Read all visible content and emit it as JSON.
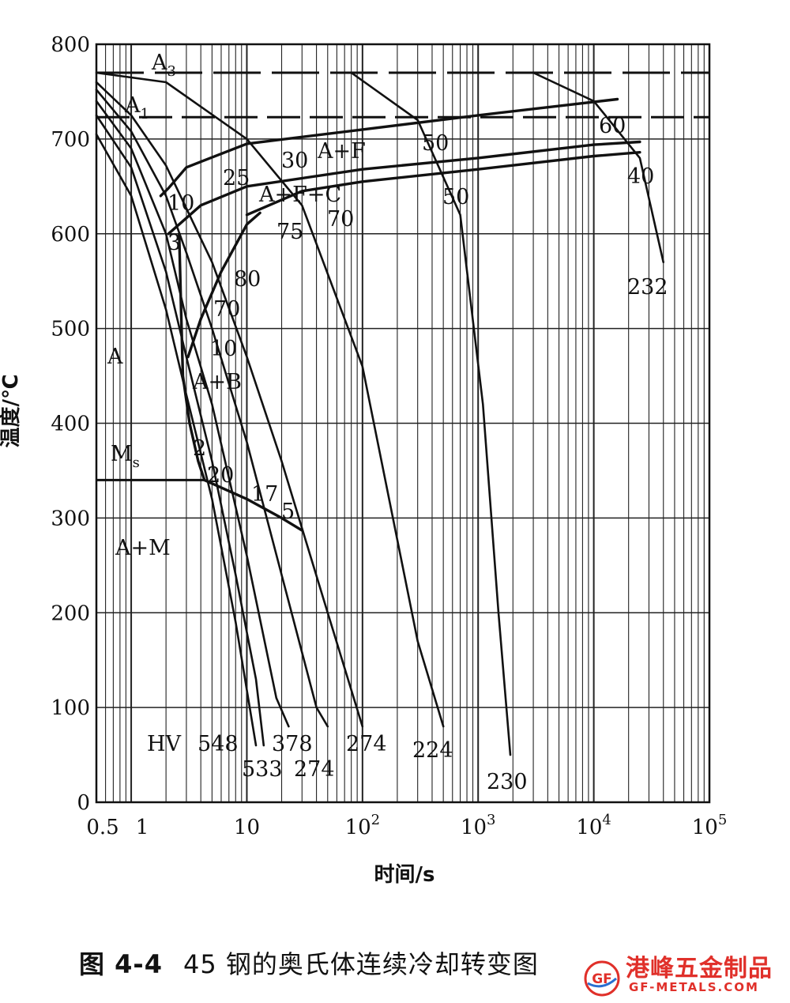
{
  "chart_data": {
    "type": "line",
    "xscale": "log",
    "xlim": [
      0.5,
      100000
    ],
    "ylim": [
      0,
      800
    ],
    "xlabel": "时间/s",
    "ylabel": "温度/℃",
    "x_ticks": [
      {
        "value": 0.5,
        "label": "0.5"
      },
      {
        "value": 1,
        "label": "1"
      },
      {
        "value": 10,
        "label": "10"
      },
      {
        "value": 100,
        "label": "10",
        "sup": "2"
      },
      {
        "value": 1000,
        "label": "10",
        "sup": "3"
      },
      {
        "value": 10000,
        "label": "10",
        "sup": "4"
      },
      {
        "value": 100000,
        "label": "10",
        "sup": "5"
      }
    ],
    "y_ticks": [
      0,
      100,
      200,
      300,
      400,
      500,
      600,
      700,
      800
    ],
    "reference_lines": [
      {
        "name": "A₃",
        "label": "A",
        "sub": "3",
        "y": 770
      },
      {
        "name": "A₁",
        "label": "A",
        "sub": "1",
        "y": 723
      },
      {
        "name": "Ms",
        "label": "M",
        "sub": "s",
        "y": 340
      }
    ],
    "regions": [
      "A",
      "A+F",
      "A+F+C",
      "A+B",
      "A+M"
    ],
    "cooling_curves": [
      {
        "hardness": "548",
        "points": [
          [
            0.5,
            705
          ],
          [
            1,
            640
          ],
          [
            2,
            520
          ],
          [
            3,
            430
          ],
          [
            5,
            320
          ],
          [
            8,
            190
          ],
          [
            12,
            60
          ]
        ]
      },
      {
        "hardness": "533",
        "points": [
          [
            0.5,
            725
          ],
          [
            1,
            670
          ],
          [
            2,
            560
          ],
          [
            3,
            470
          ],
          [
            5,
            360
          ],
          [
            8,
            240
          ],
          [
            12,
            130
          ],
          [
            14,
            60
          ]
        ]
      },
      {
        "hardness": "378",
        "points": [
          [
            0.5,
            740
          ],
          [
            1,
            690
          ],
          [
            2,
            600
          ],
          [
            3,
            510
          ],
          [
            5,
            420
          ],
          [
            10,
            260
          ],
          [
            18,
            110
          ],
          [
            23,
            80
          ]
        ]
      },
      {
        "hardness": "274",
        "points": [
          [
            0.5,
            752
          ],
          [
            1,
            708
          ],
          [
            2,
            640
          ],
          [
            3,
            580
          ],
          [
            5,
            500
          ],
          [
            10,
            380
          ],
          [
            20,
            240
          ],
          [
            40,
            100
          ],
          [
            50,
            80
          ]
        ]
      },
      {
        "hardness": "274",
        "points": [
          [
            0.5,
            760
          ],
          [
            1,
            725
          ],
          [
            2,
            672
          ],
          [
            5,
            570
          ],
          [
            10,
            470
          ],
          [
            20,
            360
          ],
          [
            50,
            200
          ],
          [
            100,
            80
          ]
        ]
      },
      {
        "hardness": "224",
        "points": [
          [
            0.5,
            770
          ],
          [
            2,
            760
          ],
          [
            10,
            700
          ],
          [
            30,
            630
          ],
          [
            100,
            460
          ],
          [
            300,
            170
          ],
          [
            500,
            80
          ]
        ]
      },
      {
        "hardness": "230",
        "points": [
          [
            80,
            770
          ],
          [
            300,
            720
          ],
          [
            700,
            620
          ],
          [
            1100,
            420
          ],
          [
            1500,
            200
          ],
          [
            1900,
            50
          ]
        ]
      },
      {
        "hardness": "232",
        "points": [
          [
            3000,
            770
          ],
          [
            10000,
            740
          ],
          [
            25000,
            680
          ],
          [
            40000,
            570
          ]
        ]
      }
    ],
    "transformation_lines": [
      {
        "name": "ferrite start",
        "points": [
          [
            1.8,
            640
          ],
          [
            2.1,
            648
          ],
          [
            3,
            670
          ],
          [
            10,
            695
          ],
          [
            100,
            710
          ],
          [
            1000,
            725
          ],
          [
            16000,
            742
          ]
        ]
      },
      {
        "name": "pearlite start",
        "points": [
          [
            2.1,
            600
          ],
          [
            4,
            630
          ],
          [
            10,
            650
          ],
          [
            100,
            668
          ],
          [
            1000,
            680
          ],
          [
            10000,
            694
          ],
          [
            25000,
            697
          ]
        ]
      },
      {
        "name": "pearlite end",
        "points": [
          [
            10,
            620
          ],
          [
            30,
            645
          ],
          [
            100,
            655
          ],
          [
            1000,
            668
          ],
          [
            10000,
            682
          ],
          [
            25000,
            686
          ]
        ]
      },
      {
        "name": "bainite start",
        "points": [
          [
            2.6,
            600
          ],
          [
            2.7,
            520
          ],
          [
            2.8,
            450
          ],
          [
            3.2,
            400
          ],
          [
            3.8,
            360
          ],
          [
            4.3,
            340
          ]
        ]
      },
      {
        "name": "bainite end",
        "points": [
          [
            3.1,
            470
          ],
          [
            4,
            510
          ],
          [
            6,
            560
          ],
          [
            10,
            610
          ],
          [
            13,
            622
          ]
        ]
      },
      {
        "name": "martensite",
        "points": [
          [
            4.3,
            340
          ],
          [
            10,
            320
          ],
          [
            20,
            300
          ],
          [
            30,
            287
          ]
        ]
      }
    ],
    "annotations": [
      "30",
      "25",
      "10",
      "3",
      "75",
      "70",
      "80",
      "70",
      "10",
      "2",
      "20",
      "17",
      "5",
      "50",
      "50",
      "60",
      "40"
    ]
  },
  "caption": {
    "number": "图 4-4",
    "text": "45 钢的奥氏体连续冷却转变图"
  },
  "watermark": {
    "name": "港峰五金制品",
    "domain": "GF-METALS.COM",
    "logo": "GF"
  }
}
